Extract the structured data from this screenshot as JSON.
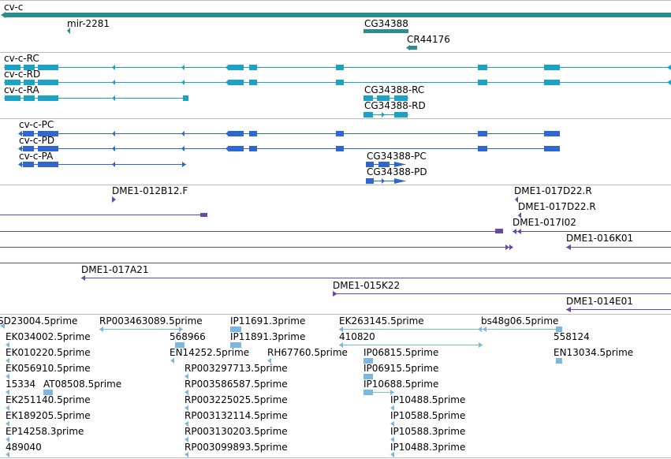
{
  "gene_track": {
    "color": "#2c8c8e",
    "labels": [
      "cv-c",
      "mir-2281",
      "CG34388",
      "CR44176"
    ]
  },
  "transcripts_rna": {
    "color": "#1ca2c4",
    "labels": [
      "cv-c-RC",
      "cv-c-RD",
      "cv-c-RA",
      "CG34388-RC",
      "CG34388-RD"
    ]
  },
  "transcripts_protein": {
    "color": "#2f66cf",
    "labels": [
      "cv-c-PC",
      "cv-c-PD",
      "cv-c-PA",
      "CG34388-PC",
      "CG34388-PD"
    ]
  },
  "bac_clones": {
    "color": "#6b47a8",
    "labels": [
      "DME1-012B12.F",
      "DME1-017D22.R",
      "DME1-017D22.R",
      "DME1-017I02",
      "DME1-016K01",
      "DME1-017A21",
      "DME1-015K22",
      "DME1-014E01"
    ]
  },
  "ests": {
    "color": "#7ab8e0",
    "labels": [
      "SD23004.5prime",
      "RP003463089.5prime",
      "IP11691.3prime",
      "EK263145.5prime",
      "bs48g06.5prime",
      "EK034002.5prime",
      "568966",
      "IP11891.3prime",
      "410820",
      "558124",
      "EK010220.5prime",
      "EN14252.5prime",
      "RH67760.5prime",
      "IP06815.5prime",
      "EN13034.5prime",
      "EK056910.5prime",
      "RP003297713.5prime",
      "IP06915.5prime",
      "15334",
      "AT08508.5prime",
      "RP003586587.5prime",
      "IP10688.5prime",
      "EK251140.5prime",
      "RP003225025.5prime",
      "IP10488.5prime",
      "EK189205.5prime",
      "RP003132114.5prime",
      "IP10588.5prime",
      "EP14258.3prime",
      "RP003130203.5prime",
      "IP10588.3prime",
      "489040",
      "RP003099893.5prime",
      "IP10488.3prime"
    ]
  }
}
